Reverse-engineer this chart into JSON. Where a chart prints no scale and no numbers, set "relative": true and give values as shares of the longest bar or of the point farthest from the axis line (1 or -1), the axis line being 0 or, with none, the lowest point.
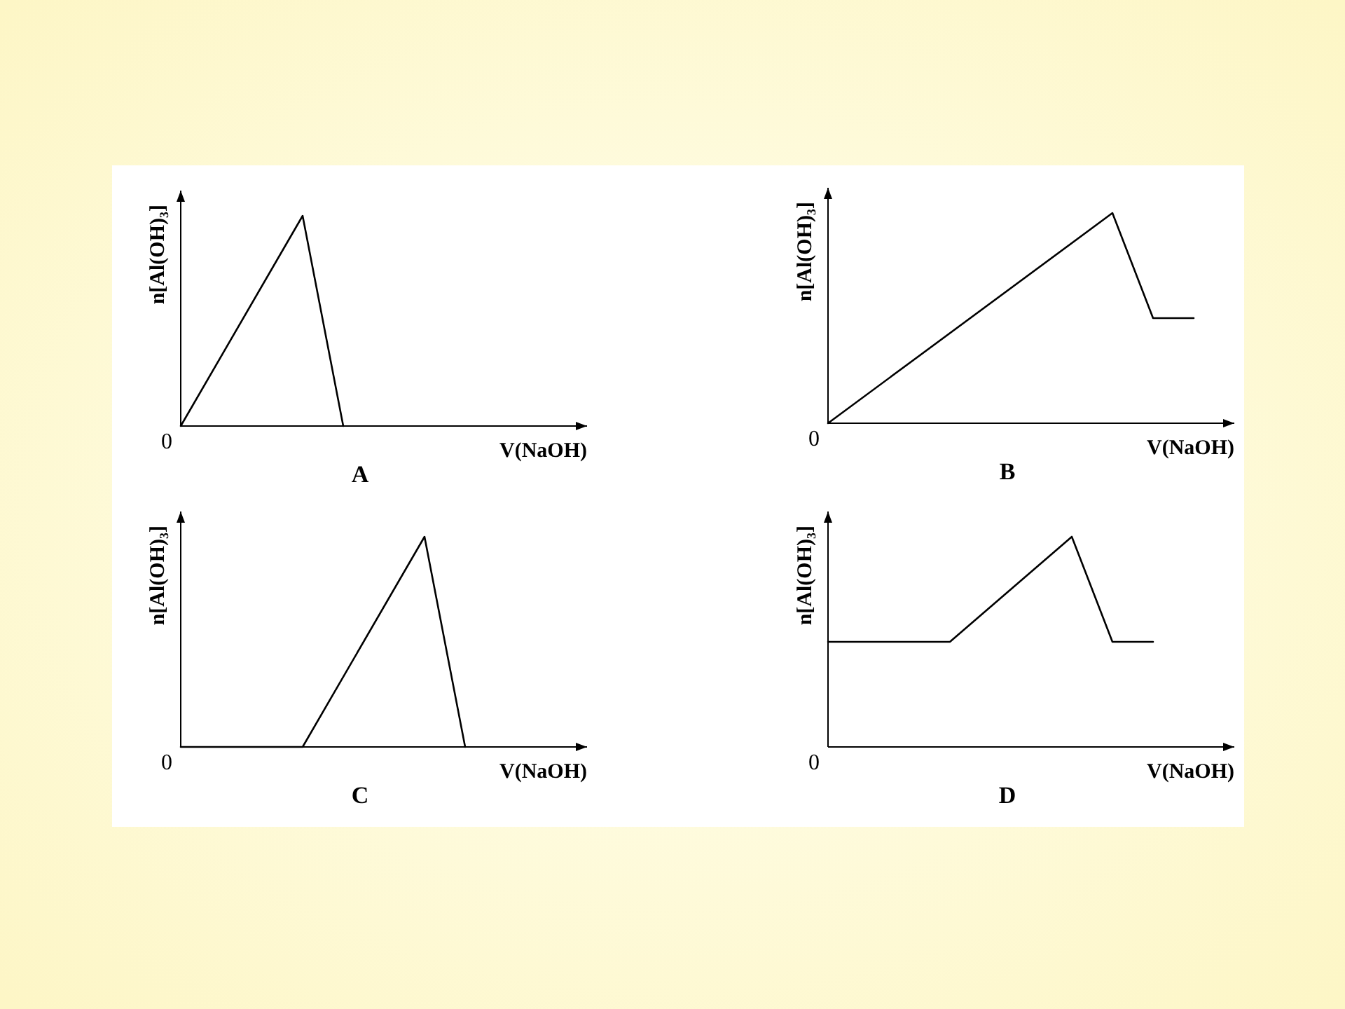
{
  "chart_data": [
    {
      "type": "line",
      "relative": true,
      "title": "A",
      "xlabel": "V(NaOH)",
      "ylabel": "n[Al(OH)₃]",
      "annotations": [
        "0"
      ],
      "color": "#000000",
      "categories": [
        null,
        null,
        null,
        null,
        null,
        null,
        null,
        null,
        null,
        null
      ],
      "values": [
        0,
        null,
        null,
        1,
        0,
        null,
        null,
        null,
        null,
        null
      ]
    },
    {
      "type": "line",
      "relative": true,
      "title": "B",
      "xlabel": "V(NaOH)",
      "ylabel": "n[Al(OH)₃]",
      "annotations": [
        "0"
      ],
      "color": "#000000",
      "categories": [
        null,
        null,
        null,
        null,
        null,
        null,
        null,
        null,
        null,
        null,
        null
      ],
      "values": [
        0,
        null,
        null,
        null,
        null,
        null,
        null,
        1,
        0.5,
        0.5,
        null
      ]
    },
    {
      "type": "line",
      "relative": true,
      "title": "C",
      "xlabel": "V(NaOH)",
      "ylabel": "n[Al(OH)₃]",
      "annotations": [
        "0"
      ],
      "color": "#000000",
      "categories": [
        null,
        null,
        null,
        null,
        null,
        null,
        null,
        null,
        null,
        null
      ],
      "values": [
        0,
        null,
        null,
        0,
        null,
        null,
        1,
        0,
        null,
        null
      ]
    },
    {
      "type": "line",
      "relative": true,
      "title": "D",
      "xlabel": "V(NaOH)",
      "ylabel": "n[Al(OH)₃]",
      "annotations": [
        "0"
      ],
      "color": "#000000",
      "categories": [
        null,
        null,
        null,
        null,
        null,
        null,
        null,
        null,
        null,
        null
      ],
      "values": [
        0.5,
        null,
        null,
        0.5,
        null,
        null,
        1,
        0.5,
        0.5,
        null
      ]
    }
  ]
}
